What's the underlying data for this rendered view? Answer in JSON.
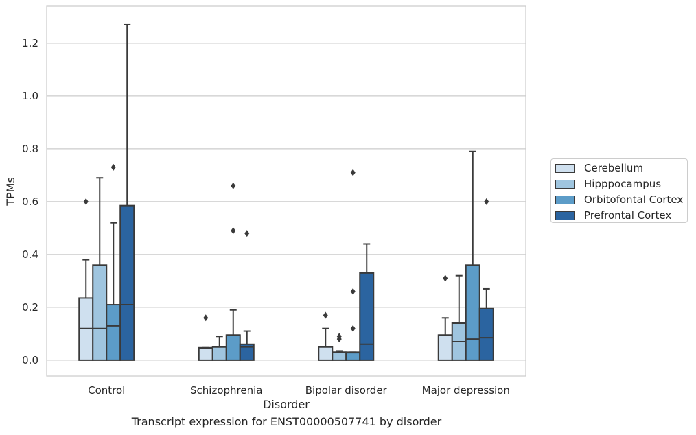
{
  "caption": "Transcript expression for ENST00000507741 by disorder",
  "chart_data": {
    "type": "boxplot",
    "xlabel": "Disorder",
    "ylabel": "TPMs",
    "ylim": [
      -0.06,
      1.34
    ],
    "yticks": [
      "0.0",
      "0.2",
      "0.4",
      "0.6",
      "0.8",
      "1.0",
      "1.2"
    ],
    "grid": "horizontal",
    "legend_placement": "right, outside",
    "categories": [
      "Control",
      "Schizophrenia",
      "Bipolar disorder",
      "Major depression"
    ],
    "series": [
      {
        "name": "Cerebellum",
        "color": "#cfe0ef",
        "boxes": [
          {
            "q1": 0.0,
            "median": 0.12,
            "q3": 0.235,
            "whisker_low": 0.0,
            "whisker_high": 0.38,
            "outliers": [
              0.6
            ]
          },
          {
            "q1": 0.0,
            "median": 0.045,
            "q3": 0.047,
            "whisker_low": 0.0,
            "whisker_high": 0.047,
            "outliers": [
              0.16
            ]
          },
          {
            "q1": 0.0,
            "median": 0.05,
            "q3": 0.05,
            "whisker_low": 0.0,
            "whisker_high": 0.12,
            "outliers": [
              0.17
            ]
          },
          {
            "q1": 0.0,
            "median": 0.095,
            "q3": 0.095,
            "whisker_low": 0.0,
            "whisker_high": 0.16,
            "outliers": [
              0.31
            ]
          }
        ]
      },
      {
        "name": "Hipppocampus",
        "color": "#9fc5df",
        "boxes": [
          {
            "q1": 0.0,
            "median": 0.12,
            "q3": 0.36,
            "whisker_low": 0.0,
            "whisker_high": 0.69,
            "outliers": []
          },
          {
            "q1": 0.0,
            "median": 0.05,
            "q3": 0.05,
            "whisker_low": 0.0,
            "whisker_high": 0.09,
            "outliers": []
          },
          {
            "q1": 0.0,
            "median": 0.03,
            "q3": 0.03,
            "whisker_low": 0.0,
            "whisker_high": 0.035,
            "outliers": [
              0.08,
              0.09
            ]
          },
          {
            "q1": 0.0,
            "median": 0.07,
            "q3": 0.14,
            "whisker_low": 0.0,
            "whisker_high": 0.32,
            "outliers": []
          }
        ]
      },
      {
        "name": "Orbitofontal Cortex",
        "color": "#5c9cc8",
        "boxes": [
          {
            "q1": 0.0,
            "median": 0.13,
            "q3": 0.21,
            "whisker_low": 0.0,
            "whisker_high": 0.52,
            "outliers": [
              0.73
            ]
          },
          {
            "q1": 0.0,
            "median": 0.095,
            "q3": 0.095,
            "whisker_low": 0.0,
            "whisker_high": 0.19,
            "outliers": [
              0.49,
              0.66
            ]
          },
          {
            "q1": 0.0,
            "median": 0.028,
            "q3": 0.03,
            "whisker_low": 0.0,
            "whisker_high": 0.03,
            "outliers": [
              0.12,
              0.26,
              0.71
            ]
          },
          {
            "q1": 0.0,
            "median": 0.08,
            "q3": 0.36,
            "whisker_low": 0.0,
            "whisker_high": 0.79,
            "outliers": []
          }
        ]
      },
      {
        "name": "Prefrontal Cortex",
        "color": "#2b64a0",
        "boxes": [
          {
            "q1": 0.0,
            "median": 0.21,
            "q3": 0.585,
            "whisker_low": 0.0,
            "whisker_high": 1.27,
            "outliers": []
          },
          {
            "q1": 0.0,
            "median": 0.05,
            "q3": 0.06,
            "whisker_low": 0.0,
            "whisker_high": 0.11,
            "outliers": [
              0.48
            ]
          },
          {
            "q1": 0.0,
            "median": 0.06,
            "q3": 0.33,
            "whisker_low": 0.0,
            "whisker_high": 0.44,
            "outliers": []
          },
          {
            "q1": 0.0,
            "median": 0.085,
            "q3": 0.195,
            "whisker_low": 0.0,
            "whisker_high": 0.27,
            "outliers": [
              0.6
            ]
          }
        ]
      }
    ]
  }
}
